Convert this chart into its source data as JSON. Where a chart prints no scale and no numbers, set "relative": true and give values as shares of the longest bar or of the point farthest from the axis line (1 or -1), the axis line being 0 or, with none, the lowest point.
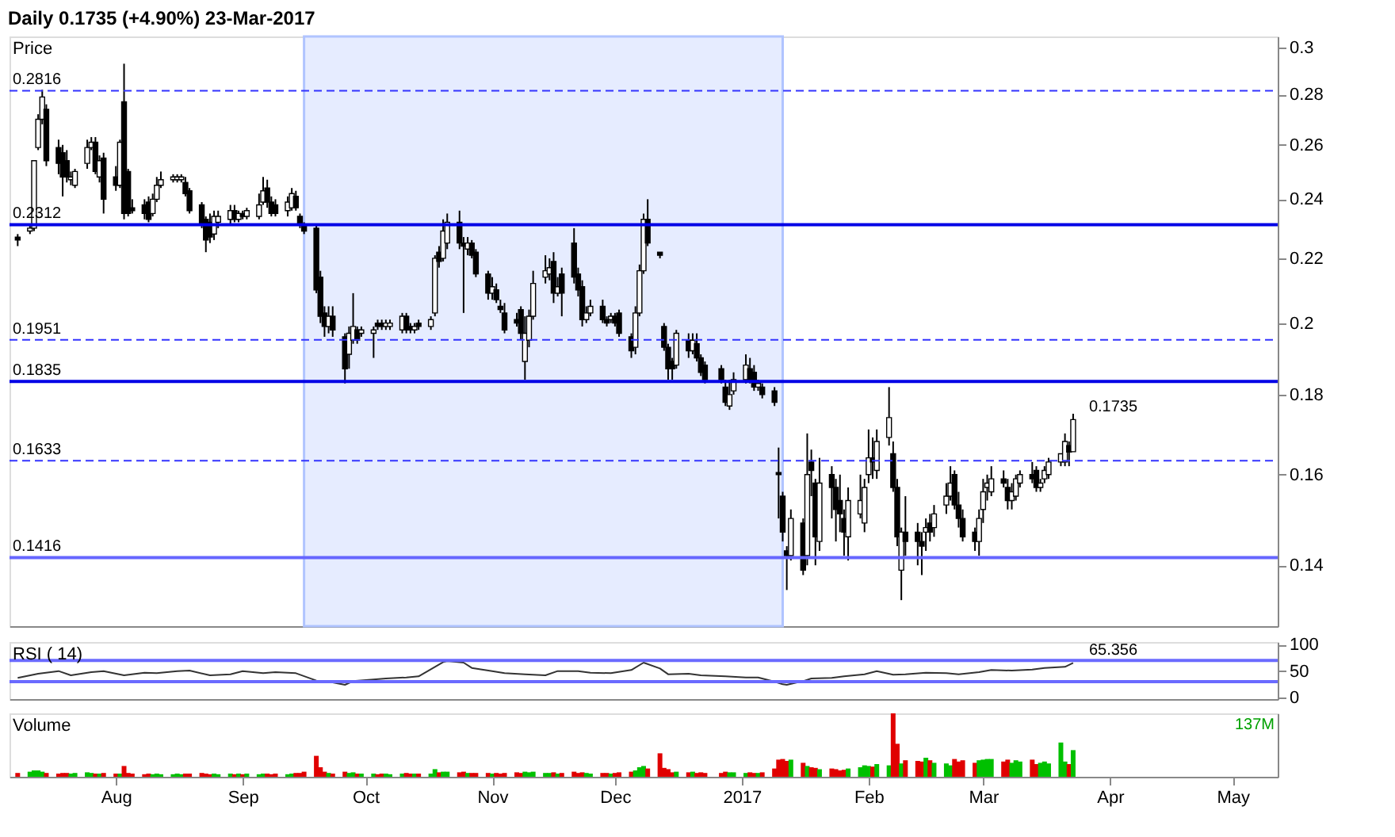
{
  "chart_data": [
    {
      "type": "candlestick",
      "title": "Daily   0.1735 (+4.90%)   23-Mar-2017",
      "ylabel": "Price",
      "x": [
        "2016-07-08",
        "2016-07-11",
        "2016-07-12",
        "2016-07-13",
        "2016-07-14",
        "2016-07-15",
        "2016-07-18",
        "2016-07-19",
        "2016-07-20",
        "2016-07-21",
        "2016-07-22",
        "2016-07-25",
        "2016-07-26",
        "2016-07-27",
        "2016-07-28",
        "2016-07-29",
        "2016-08-01",
        "2016-08-02",
        "2016-08-03",
        "2016-08-04",
        "2016-08-05",
        "2016-08-08",
        "2016-08-09",
        "2016-08-10",
        "2016-08-11",
        "2016-08-12",
        "2016-08-15",
        "2016-08-16",
        "2016-08-17",
        "2016-08-18",
        "2016-08-19",
        "2016-08-22",
        "2016-08-23",
        "2016-08-24",
        "2016-08-25",
        "2016-08-26",
        "2016-08-29",
        "2016-08-30",
        "2016-08-31",
        "2016-09-01",
        "2016-09-02",
        "2016-09-05",
        "2016-09-06",
        "2016-09-07",
        "2016-09-08",
        "2016-09-09",
        "2016-09-12",
        "2016-09-13",
        "2016-09-14",
        "2016-09-15",
        "2016-09-16",
        "2016-09-19",
        "2016-09-20",
        "2016-09-21",
        "2016-09-22",
        "2016-09-23",
        "2016-09-26",
        "2016-09-27",
        "2016-09-28",
        "2016-09-29",
        "2016-09-30",
        "2016-10-03",
        "2016-10-04",
        "2016-10-05",
        "2016-10-06",
        "2016-10-07",
        "2016-10-10",
        "2016-10-11",
        "2016-10-12",
        "2016-10-13",
        "2016-10-14",
        "2016-10-17",
        "2016-10-18",
        "2016-10-19",
        "2016-10-20",
        "2016-10-21",
        "2016-10-24",
        "2016-10-25",
        "2016-10-26",
        "2016-10-27",
        "2016-10-28",
        "2016-10-31",
        "2016-11-01",
        "2016-11-02",
        "2016-11-03",
        "2016-11-04",
        "2016-11-07",
        "2016-11-08",
        "2016-11-09",
        "2016-11-10",
        "2016-11-11",
        "2016-11-14",
        "2016-11-15",
        "2016-11-16",
        "2016-11-17",
        "2016-11-18",
        "2016-11-21",
        "2016-11-22",
        "2016-11-23",
        "2016-11-24",
        "2016-11-25",
        "2016-11-28",
        "2016-11-29",
        "2016-11-30",
        "2016-12-01",
        "2016-12-02",
        "2016-12-05",
        "2016-12-06",
        "2016-12-07",
        "2016-12-08",
        "2016-12-09",
        "2016-12-12",
        "2016-12-13",
        "2016-12-14",
        "2016-12-15",
        "2016-12-16",
        "2016-12-19",
        "2016-12-20",
        "2016-12-21",
        "2016-12-22",
        "2016-12-23",
        "2016-12-27",
        "2016-12-28",
        "2016-12-29",
        "2016-12-30",
        "2017-01-02",
        "2017-01-03",
        "2017-01-04",
        "2017-01-05",
        "2017-01-06",
        "2017-01-09",
        "2017-01-10",
        "2017-01-11",
        "2017-01-12",
        "2017-01-13",
        "2017-01-16",
        "2017-01-17",
        "2017-01-18",
        "2017-01-19",
        "2017-01-20",
        "2017-01-23",
        "2017-01-24",
        "2017-01-25",
        "2017-01-26",
        "2017-01-27",
        "2017-01-30",
        "2017-01-31",
        "2017-02-01",
        "2017-02-02",
        "2017-02-03",
        "2017-02-06",
        "2017-02-07",
        "2017-02-08",
        "2017-02-09",
        "2017-02-10",
        "2017-02-13",
        "2017-02-14",
        "2017-02-15",
        "2017-02-16",
        "2017-02-17",
        "2017-02-20",
        "2017-02-21",
        "2017-02-22",
        "2017-02-23",
        "2017-02-24",
        "2017-02-27",
        "2017-02-28",
        "2017-03-01",
        "2017-03-02",
        "2017-03-03",
        "2017-03-06",
        "2017-03-07",
        "2017-03-08",
        "2017-03-09",
        "2017-03-10",
        "2017-03-13",
        "2017-03-14",
        "2017-03-15",
        "2017-03-16",
        "2017-03-17",
        "2017-03-20",
        "2017-03-21",
        "2017-03-22",
        "2017-03-23"
      ],
      "ohlc": [
        [
          0.227,
          0.228,
          0.224,
          0.226
        ],
        [
          0.229,
          0.231,
          0.228,
          0.23
        ],
        [
          0.23,
          0.254,
          0.229,
          0.254
        ],
        [
          0.259,
          0.272,
          0.258,
          0.27
        ],
        [
          0.27,
          0.282,
          0.268,
          0.279
        ],
        [
          0.274,
          0.276,
          0.252,
          0.254
        ],
        [
          0.259,
          0.262,
          0.249,
          0.253
        ],
        [
          0.257,
          0.26,
          0.241,
          0.248
        ],
        [
          0.254,
          0.258,
          0.246,
          0.248
        ],
        [
          0.247,
          0.25,
          0.245,
          0.248
        ],
        [
          0.245,
          0.251,
          0.244,
          0.25
        ],
        [
          0.253,
          0.262,
          0.251,
          0.259
        ],
        [
          0.259,
          0.263,
          0.258,
          0.261
        ],
        [
          0.261,
          0.263,
          0.249,
          0.25
        ],
        [
          0.248,
          0.256,
          0.246,
          0.254
        ],
        [
          0.255,
          0.257,
          0.235,
          0.24
        ],
        [
          0.248,
          0.252,
          0.243,
          0.245
        ],
        [
          0.245,
          0.262,
          0.244,
          0.261
        ],
        [
          0.277,
          0.293,
          0.233,
          0.235
        ],
        [
          0.25,
          0.251,
          0.234,
          0.235
        ],
        [
          0.237,
          0.24,
          0.235,
          0.236
        ],
        [
          0.238,
          0.24,
          0.233,
          0.235
        ],
        [
          0.239,
          0.241,
          0.232,
          0.233
        ],
        [
          0.235,
          0.242,
          0.234,
          0.24
        ],
        [
          0.24,
          0.248,
          0.239,
          0.245
        ],
        [
          0.245,
          0.25,
          0.244,
          0.247
        ],
        [
          0.247,
          0.249,
          0.246,
          0.248
        ],
        [
          0.247,
          0.249,
          0.246,
          0.248
        ],
        [
          0.247,
          0.249,
          0.246,
          0.248
        ],
        [
          0.246,
          0.248,
          0.241,
          0.242
        ],
        [
          0.243,
          0.244,
          0.235,
          0.236
        ],
        [
          0.238,
          0.239,
          0.23,
          0.231
        ],
        [
          0.233,
          0.234,
          0.222,
          0.226
        ],
        [
          0.232,
          0.235,
          0.225,
          0.227
        ],
        [
          0.228,
          0.236,
          0.226,
          0.234
        ],
        [
          0.232,
          0.236,
          0.23,
          0.234
        ],
        [
          0.233,
          0.238,
          0.231,
          0.236
        ],
        [
          0.236,
          0.238,
          0.232,
          0.233
        ],
        [
          0.233,
          0.236,
          0.232,
          0.235
        ],
        [
          0.235,
          0.236,
          0.233,
          0.234
        ],
        [
          0.234,
          0.237,
          0.233,
          0.236
        ],
        [
          0.234,
          0.242,
          0.233,
          0.238
        ],
        [
          0.239,
          0.248,
          0.238,
          0.243
        ],
        [
          0.244,
          0.247,
          0.237,
          0.239
        ],
        [
          0.239,
          0.241,
          0.234,
          0.235
        ],
        [
          0.238,
          0.24,
          0.234,
          0.235
        ],
        [
          0.236,
          0.241,
          0.234,
          0.239
        ],
        [
          0.237,
          0.244,
          0.236,
          0.242
        ],
        [
          0.241,
          0.243,
          0.236,
          0.237
        ],
        [
          0.234,
          0.235,
          0.23,
          0.231
        ],
        [
          0.231,
          0.232,
          0.228,
          0.229
        ],
        [
          0.23,
          0.231,
          0.209,
          0.21
        ],
        [
          0.214,
          0.216,
          0.2,
          0.202
        ],
        [
          0.203,
          0.205,
          0.196,
          0.199
        ],
        [
          0.199,
          0.205,
          0.197,
          0.202
        ],
        [
          0.202,
          0.205,
          0.196,
          0.198
        ],
        [
          0.196,
          0.197,
          0.183,
          0.187
        ],
        [
          0.191,
          0.199,
          0.187,
          0.197
        ],
        [
          0.195,
          0.209,
          0.194,
          0.199
        ],
        [
          0.198,
          0.199,
          0.194,
          0.195
        ],
        [
          0.197,
          0.199,
          0.196,
          0.198
        ],
        [
          0.197,
          0.199,
          0.19,
          0.198
        ],
        [
          0.2,
          0.201,
          0.198,
          0.199
        ],
        [
          0.2,
          0.201,
          0.198,
          0.199
        ],
        [
          0.199,
          0.201,
          0.198,
          0.2
        ],
        [
          0.199,
          0.201,
          0.198,
          0.2
        ],
        [
          0.198,
          0.203,
          0.197,
          0.202
        ],
        [
          0.202,
          0.203,
          0.197,
          0.198
        ],
        [
          0.199,
          0.2,
          0.197,
          0.198
        ],
        [
          0.198,
          0.2,
          0.197,
          0.199
        ],
        [
          0.2,
          0.201,
          0.198,
          0.199
        ],
        [
          0.199,
          0.202,
          0.198,
          0.201
        ],
        [
          0.203,
          0.221,
          0.202,
          0.22
        ],
        [
          0.222,
          0.224,
          0.217,
          0.219
        ],
        [
          0.22,
          0.233,
          0.219,
          0.229
        ],
        [
          0.225,
          0.235,
          0.223,
          0.232
        ],
        [
          0.232,
          0.236,
          0.223,
          0.225
        ],
        [
          0.225,
          0.227,
          0.203,
          0.224
        ],
        [
          0.223,
          0.227,
          0.221,
          0.225
        ],
        [
          0.225,
          0.226,
          0.22,
          0.221
        ],
        [
          0.222,
          0.223,
          0.214,
          0.215
        ],
        [
          0.215,
          0.216,
          0.207,
          0.209
        ],
        [
          0.209,
          0.214,
          0.207,
          0.211
        ],
        [
          0.21,
          0.212,
          0.206,
          0.207
        ],
        [
          0.205,
          0.207,
          0.203,
          0.204
        ],
        [
          0.203,
          0.206,
          0.197,
          0.198
        ],
        [
          0.201,
          0.203,
          0.199,
          0.2
        ],
        [
          0.204,
          0.205,
          0.195,
          0.197
        ],
        [
          0.189,
          0.202,
          0.184,
          0.197
        ],
        [
          0.195,
          0.204,
          0.193,
          0.202
        ],
        [
          0.202,
          0.216,
          0.201,
          0.212
        ],
        [
          0.214,
          0.221,
          0.212,
          0.216
        ],
        [
          0.215,
          0.22,
          0.213,
          0.217
        ],
        [
          0.219,
          0.222,
          0.206,
          0.209
        ],
        [
          0.209,
          0.214,
          0.208,
          0.211
        ],
        [
          0.215,
          0.217,
          0.202,
          0.209
        ],
        [
          0.225,
          0.23,
          0.212,
          0.214
        ],
        [
          0.215,
          0.217,
          0.208,
          0.21
        ],
        [
          0.211,
          0.213,
          0.199,
          0.201
        ],
        [
          0.201,
          0.205,
          0.2,
          0.203
        ],
        [
          0.203,
          0.207,
          0.202,
          0.205
        ],
        [
          0.205,
          0.207,
          0.2,
          0.201
        ],
        [
          0.201,
          0.202,
          0.199,
          0.2
        ],
        [
          0.201,
          0.203,
          0.2,
          0.202
        ],
        [
          0.202,
          0.203,
          0.199,
          0.2
        ],
        [
          0.203,
          0.204,
          0.196,
          0.197
        ],
        [
          0.196,
          0.197,
          0.19,
          0.192
        ],
        [
          0.193,
          0.205,
          0.191,
          0.203
        ],
        [
          0.203,
          0.218,
          0.202,
          0.216
        ],
        [
          0.216,
          0.235,
          0.215,
          0.233
        ],
        [
          0.233,
          0.24,
          0.224,
          0.225
        ],
        [
          0.222,
          0.222,
          0.22,
          0.221
        ],
        [
          0.199,
          0.2,
          0.192,
          0.193
        ],
        [
          0.193,
          0.194,
          0.184,
          0.187
        ],
        [
          0.189,
          0.19,
          0.184,
          0.187
        ],
        [
          0.188,
          0.198,
          0.187,
          0.197
        ],
        [
          0.195,
          0.197,
          0.19,
          0.192
        ],
        [
          0.192,
          0.197,
          0.191,
          0.195
        ],
        [
          0.194,
          0.197,
          0.189,
          0.19
        ],
        [
          0.19,
          0.191,
          0.185,
          0.186
        ],
        [
          0.188,
          0.189,
          0.183,
          0.184
        ],
        [
          0.187,
          0.188,
          0.183,
          0.184
        ],
        [
          0.182,
          0.184,
          0.177,
          0.178
        ],
        [
          0.177,
          0.184,
          0.176,
          0.18
        ],
        [
          0.181,
          0.186,
          0.18,
          0.184
        ],
        [
          0.184,
          0.191,
          0.183,
          0.188
        ],
        [
          0.187,
          0.19,
          0.183,
          0.184
        ],
        [
          0.186,
          0.188,
          0.181,
          0.182
        ],
        [
          0.182,
          0.184,
          0.181,
          0.183
        ],
        [
          0.182,
          0.183,
          0.179,
          0.18
        ],
        [
          0.181,
          0.182,
          0.177,
          0.178
        ],
        [
          0.1605,
          0.1665,
          0.15,
          0.16
        ],
        [
          0.155,
          0.156,
          0.145,
          0.147
        ],
        [
          0.143,
          0.144,
          0.135,
          0.142
        ],
        [
          0.142,
          0.152,
          0.141,
          0.15
        ],
        [
          0.149,
          0.15,
          0.138,
          0.139
        ],
        [
          0.142,
          0.17,
          0.14,
          0.16
        ],
        [
          0.163,
          0.166,
          0.155,
          0.161
        ],
        [
          0.158,
          0.159,
          0.14,
          0.146
        ],
        [
          0.145,
          0.164,
          0.143,
          0.158
        ],
        [
          0.16,
          0.162,
          0.15,
          0.157
        ],
        [
          0.157,
          0.159,
          0.145,
          0.152
        ],
        [
          0.154,
          0.16,
          0.147,
          0.151
        ],
        [
          0.15,
          0.152,
          0.142,
          0.147
        ],
        [
          0.146,
          0.157,
          0.141,
          0.154
        ],
        [
          0.151,
          0.16,
          0.15,
          0.154
        ],
        [
          0.149,
          0.159,
          0.147,
          0.157
        ],
        [
          0.16,
          0.171,
          0.158,
          0.164
        ],
        [
          0.164,
          0.169,
          0.159,
          0.163
        ],
        [
          0.161,
          0.171,
          0.159,
          0.168
        ],
        [
          0.169,
          0.182,
          0.167,
          0.174
        ],
        [
          0.165,
          0.168,
          0.156,
          0.157
        ],
        [
          0.157,
          0.159,
          0.144,
          0.146
        ],
        [
          0.139,
          0.148,
          0.133,
          0.147
        ],
        [
          0.147,
          0.155,
          0.142,
          0.145
        ],
        [
          0.147,
          0.149,
          0.14,
          0.145
        ],
        [
          0.145,
          0.147,
          0.138,
          0.144
        ],
        [
          0.147,
          0.15,
          0.143,
          0.148
        ],
        [
          0.149,
          0.151,
          0.145,
          0.147
        ],
        [
          0.148,
          0.153,
          0.146,
          0.151
        ],
        [
          0.153,
          0.158,
          0.151,
          0.155
        ],
        [
          0.155,
          0.162,
          0.154,
          0.158
        ],
        [
          0.16,
          0.161,
          0.152,
          0.153
        ],
        [
          0.153,
          0.156,
          0.148,
          0.15
        ],
        [
          0.15,
          0.152,
          0.145,
          0.146
        ],
        [
          0.147,
          0.148,
          0.143,
          0.145
        ],
        [
          0.145,
          0.152,
          0.142,
          0.15
        ],
        [
          0.152,
          0.159,
          0.149,
          0.156
        ],
        [
          0.157,
          0.16,
          0.154,
          0.158
        ],
        [
          0.156,
          0.162,
          0.155,
          0.159
        ],
        [
          0.159,
          0.161,
          0.157,
          0.158
        ],
        [
          0.157,
          0.159,
          0.152,
          0.154
        ],
        [
          0.154,
          0.158,
          0.152,
          0.156
        ],
        [
          0.155,
          0.16,
          0.154,
          0.159
        ],
        [
          0.158,
          0.161,
          0.157,
          0.16
        ],
        [
          0.16,
          0.163,
          0.158,
          0.159
        ],
        [
          0.161,
          0.162,
          0.156,
          0.157
        ],
        [
          0.157,
          0.159,
          0.156,
          0.158
        ],
        [
          0.159,
          0.162,
          0.158,
          0.161
        ],
        [
          0.16,
          0.164,
          0.159,
          0.163
        ],
        [
          0.163,
          0.165,
          0.162,
          0.165
        ],
        [
          0.163,
          0.17,
          0.162,
          0.168
        ],
        [
          0.167,
          0.168,
          0.162,
          0.1654
        ],
        [
          0.1655,
          0.175,
          0.1655,
          0.1735
        ]
      ],
      "log": "y",
      "ylim": [
        0.128,
        0.305
      ],
      "yticks": [
        0.14,
        0.16,
        0.18,
        0.2,
        0.22,
        0.24,
        0.26,
        0.28,
        0.3
      ],
      "xlim": [
        "2016-07-06",
        "2017-05-12"
      ],
      "tick_labels": "y",
      "grid": false,
      "ref_lines": [
        {
          "axis": "y",
          "value": 0.2816,
          "label": "0.2816",
          "color": "#3333ff",
          "line_style": "dashed"
        },
        {
          "axis": "y",
          "value": 0.2312,
          "label": "0.2312",
          "color": "#0000e6",
          "line_style": "solid"
        },
        {
          "axis": "y",
          "value": 0.1951,
          "label": "0.1951",
          "color": "#3333ff",
          "line_style": "dashed"
        },
        {
          "axis": "y",
          "value": 0.1835,
          "label": "0.1835",
          "color": "#0000e6",
          "line_style": "solid"
        },
        {
          "axis": "y",
          "value": 0.1633,
          "label": "0.1633",
          "color": "#3333ff",
          "line_style": "dashed"
        },
        {
          "axis": "y",
          "value": 0.1416,
          "label": "0.1416",
          "color": "#6666ff",
          "line_style": "solid"
        }
      ],
      "bands": [
        {
          "axis": "x",
          "from": "2016-09-16",
          "to": "2017-01-11",
          "color": "#e6ecff"
        }
      ],
      "annotations": [
        {
          "text": "0.1735",
          "x": "2017-03-23",
          "y": 0.1735
        }
      ]
    },
    {
      "type": "line",
      "title": "RSI ( 14)",
      "x": [
        "2016-07-08",
        "2016-07-13",
        "2016-07-18",
        "2016-07-21",
        "2016-07-26",
        "2016-07-29",
        "2016-08-03",
        "2016-08-08",
        "2016-08-11",
        "2016-08-16",
        "2016-08-19",
        "2016-08-24",
        "2016-08-29",
        "2016-09-01",
        "2016-09-06",
        "2016-09-09",
        "2016-09-14",
        "2016-09-19",
        "2016-09-22",
        "2016-09-26",
        "2016-09-28",
        "2016-10-03",
        "2016-10-06",
        "2016-10-11",
        "2016-10-14",
        "2016-10-18",
        "2016-10-20",
        "2016-10-21",
        "2016-10-25",
        "2016-10-27",
        "2016-11-01",
        "2016-11-04",
        "2016-11-09",
        "2016-11-14",
        "2016-11-17",
        "2016-11-22",
        "2016-11-25",
        "2016-11-30",
        "2016-12-05",
        "2016-12-08",
        "2016-12-12",
        "2016-12-14",
        "2016-12-19",
        "2016-12-22",
        "2016-12-28",
        "2017-01-02",
        "2017-01-05",
        "2017-01-09",
        "2017-01-11",
        "2017-01-12",
        "2017-01-16",
        "2017-01-18",
        "2017-01-23",
        "2017-01-26",
        "2017-01-31",
        "2017-02-03",
        "2017-02-07",
        "2017-02-10",
        "2017-02-15",
        "2017-02-20",
        "2017-02-23",
        "2017-02-28",
        "2017-03-03",
        "2017-03-08",
        "2017-03-13",
        "2017-03-16",
        "2017-03-21",
        "2017-03-23"
      ],
      "series": [
        {
          "color": "#333333",
          "values": [
            37,
            45,
            50,
            42,
            48,
            50,
            42,
            47,
            46,
            50,
            51,
            42,
            44,
            50,
            46,
            48,
            46,
            32,
            30,
            24,
            31,
            34,
            36,
            38,
            40,
            58,
            67,
            69,
            66,
            56,
            50,
            46,
            44,
            42,
            50,
            50,
            47,
            46,
            52,
            66,
            55,
            44,
            45,
            42,
            40,
            38,
            38,
            30,
            25,
            24,
            31,
            36,
            37,
            40,
            44,
            50,
            43,
            44,
            47,
            46,
            44,
            48,
            52,
            51,
            53,
            56,
            58,
            65.356
          ]
        }
      ],
      "ylim": [
        -3,
        105
      ],
      "yticks": [
        0,
        50,
        100
      ],
      "xlim": [
        "2016-07-06",
        "2017-05-12"
      ],
      "tick_labels": "y",
      "grid": false,
      "ref_lines": [
        {
          "axis": "y",
          "value": 70,
          "color": "#6a6aff",
          "line_style": "solid"
        },
        {
          "axis": "y",
          "value": 30,
          "color": "#6a6aff",
          "line_style": "solid"
        }
      ],
      "annotations": [
        {
          "text": "65.356",
          "x": "2017-03-23",
          "y": 65.356
        }
      ]
    },
    {
      "type": "bar",
      "title": "Volume",
      "relative": true,
      "tick_labels": "x",
      "grid": false,
      "x": [
        "2016-07-08",
        "2016-07-11",
        "2016-07-12",
        "2016-07-13",
        "2016-07-14",
        "2016-07-15",
        "2016-07-18",
        "2016-07-19",
        "2016-07-20",
        "2016-07-21",
        "2016-07-22",
        "2016-07-25",
        "2016-07-26",
        "2016-07-27",
        "2016-07-28",
        "2016-07-29",
        "2016-08-01",
        "2016-08-02",
        "2016-08-03",
        "2016-08-04",
        "2016-08-05",
        "2016-08-08",
        "2016-08-09",
        "2016-08-10",
        "2016-08-11",
        "2016-08-12",
        "2016-08-15",
        "2016-08-16",
        "2016-08-17",
        "2016-08-18",
        "2016-08-19",
        "2016-08-22",
        "2016-08-23",
        "2016-08-24",
        "2016-08-25",
        "2016-08-26",
        "2016-08-29",
        "2016-08-30",
        "2016-08-31",
        "2016-09-01",
        "2016-09-02",
        "2016-09-05",
        "2016-09-06",
        "2016-09-07",
        "2016-09-08",
        "2016-09-09",
        "2016-09-12",
        "2016-09-13",
        "2016-09-14",
        "2016-09-15",
        "2016-09-16",
        "2016-09-19",
        "2016-09-20",
        "2016-09-21",
        "2016-09-22",
        "2016-09-23",
        "2016-09-26",
        "2016-09-27",
        "2016-09-28",
        "2016-09-29",
        "2016-09-30",
        "2016-10-03",
        "2016-10-04",
        "2016-10-05",
        "2016-10-06",
        "2016-10-07",
        "2016-10-10",
        "2016-10-11",
        "2016-10-12",
        "2016-10-13",
        "2016-10-14",
        "2016-10-17",
        "2016-10-18",
        "2016-10-19",
        "2016-10-20",
        "2016-10-21",
        "2016-10-24",
        "2016-10-25",
        "2016-10-26",
        "2016-10-27",
        "2016-10-28",
        "2016-10-31",
        "2016-11-01",
        "2016-11-02",
        "2016-11-03",
        "2016-11-04",
        "2016-11-07",
        "2016-11-08",
        "2016-11-09",
        "2016-11-10",
        "2016-11-11",
        "2016-11-14",
        "2016-11-15",
        "2016-11-16",
        "2016-11-17",
        "2016-11-18",
        "2016-11-21",
        "2016-11-22",
        "2016-11-23",
        "2016-11-24",
        "2016-11-25",
        "2016-11-28",
        "2016-11-29",
        "2016-11-30",
        "2016-12-01",
        "2016-12-02",
        "2016-12-05",
        "2016-12-06",
        "2016-12-07",
        "2016-12-08",
        "2016-12-09",
        "2016-12-12",
        "2016-12-13",
        "2016-12-14",
        "2016-12-15",
        "2016-12-16",
        "2016-12-19",
        "2016-12-20",
        "2016-12-21",
        "2016-12-22",
        "2016-12-23",
        "2016-12-27",
        "2016-12-28",
        "2016-12-29",
        "2016-12-30",
        "2017-01-02",
        "2017-01-03",
        "2017-01-04",
        "2017-01-05",
        "2017-01-06",
        "2017-01-09",
        "2017-01-10",
        "2017-01-11",
        "2017-01-12",
        "2017-01-13",
        "2017-01-16",
        "2017-01-17",
        "2017-01-18",
        "2017-01-19",
        "2017-01-20",
        "2017-01-23",
        "2017-01-24",
        "2017-01-25",
        "2017-01-26",
        "2017-01-27",
        "2017-01-30",
        "2017-01-31",
        "2017-02-01",
        "2017-02-02",
        "2017-02-03",
        "2017-02-06",
        "2017-02-07",
        "2017-02-08",
        "2017-02-09",
        "2017-02-10",
        "2017-02-13",
        "2017-02-14",
        "2017-02-15",
        "2017-02-16",
        "2017-02-17",
        "2017-02-20",
        "2017-02-21",
        "2017-02-22",
        "2017-02-23",
        "2017-02-24",
        "2017-02-27",
        "2017-02-28",
        "2017-03-01",
        "2017-03-02",
        "2017-03-03",
        "2017-03-06",
        "2017-03-07",
        "2017-03-08",
        "2017-03-09",
        "2017-03-10",
        "2017-03-13",
        "2017-03-14",
        "2017-03-15",
        "2017-03-16",
        "2017-03-17",
        "2017-03-20",
        "2017-03-21",
        "2017-03-22",
        "2017-03-23"
      ],
      "values": [
        0.06,
        0.08,
        0.1,
        0.1,
        0.08,
        0.06,
        0.05,
        0.06,
        0.06,
        0.05,
        0.06,
        0.07,
        0.06,
        0.05,
        0.05,
        0.06,
        0.05,
        0.05,
        0.17,
        0.06,
        0.05,
        0.04,
        0.05,
        0.04,
        0.05,
        0.04,
        0.04,
        0.05,
        0.04,
        0.05,
        0.05,
        0.06,
        0.05,
        0.04,
        0.05,
        0.04,
        0.05,
        0.04,
        0.05,
        0.04,
        0.05,
        0.04,
        0.05,
        0.05,
        0.04,
        0.05,
        0.04,
        0.05,
        0.06,
        0.06,
        0.08,
        0.33,
        0.15,
        0.08,
        0.06,
        0.05,
        0.08,
        0.06,
        0.07,
        0.05,
        0.05,
        0.05,
        0.04,
        0.05,
        0.05,
        0.04,
        0.05,
        0.06,
        0.05,
        0.05,
        0.05,
        0.05,
        0.12,
        0.07,
        0.08,
        0.08,
        0.07,
        0.08,
        0.06,
        0.06,
        0.06,
        0.06,
        0.05,
        0.06,
        0.05,
        0.06,
        0.07,
        0.06,
        0.08,
        0.07,
        0.08,
        0.06,
        0.06,
        0.07,
        0.05,
        0.06,
        0.08,
        0.06,
        0.07,
        0.06,
        0.05,
        0.06,
        0.06,
        0.05,
        0.06,
        0.07,
        0.08,
        0.1,
        0.15,
        0.17,
        0.13,
        0.37,
        0.14,
        0.12,
        0.07,
        0.08,
        0.07,
        0.08,
        0.06,
        0.07,
        0.06,
        0.06,
        0.08,
        0.07,
        0.07,
        0.06,
        0.07,
        0.06,
        0.06,
        0.07,
        0.13,
        0.27,
        0.28,
        0.25,
        0.27,
        0.22,
        0.17,
        0.15,
        0.14,
        0.12,
        0.13,
        0.12,
        0.1,
        0.11,
        0.13,
        0.15,
        0.18,
        0.17,
        0.16,
        0.2,
        0.18,
        1.0,
        0.52,
        0.21,
        0.26,
        0.25,
        0.24,
        0.3,
        0.26,
        0.22,
        0.21,
        0.18,
        0.28,
        0.24,
        0.26,
        0.22,
        0.26,
        0.27,
        0.28,
        0.28,
        0.24,
        0.27,
        0.22,
        0.26,
        0.24,
        0.27,
        0.2,
        0.22,
        0.24,
        0.21,
        0.54,
        0.24,
        0.2,
        0.42
      ],
      "colors": [
        "#e00000",
        "#00c000",
        "#00c000",
        "#00c000",
        "#00c000",
        "#e00000",
        "#e00000",
        "#e00000",
        "#e00000",
        "#00c000",
        "#00c000",
        "#00c000",
        "#00c000",
        "#e00000",
        "#00c000",
        "#e00000",
        "#e00000",
        "#00c000",
        "#e00000",
        "#e00000",
        "#e00000",
        "#e00000",
        "#e00000",
        "#00c000",
        "#00c000",
        "#00c000",
        "#00c000",
        "#00c000",
        "#00c000",
        "#e00000",
        "#e00000",
        "#e00000",
        "#e00000",
        "#e00000",
        "#00c000",
        "#00c000",
        "#00c000",
        "#e00000",
        "#00c000",
        "#e00000",
        "#00c000",
        "#00c000",
        "#00c000",
        "#e00000",
        "#e00000",
        "#e00000",
        "#00c000",
        "#00c000",
        "#e00000",
        "#e00000",
        "#e00000",
        "#e00000",
        "#e00000",
        "#e00000",
        "#00c000",
        "#e00000",
        "#e00000",
        "#00c000",
        "#00c000",
        "#e00000",
        "#00c000",
        "#00c000",
        "#e00000",
        "#e00000",
        "#00c000",
        "#00c000",
        "#00c000",
        "#e00000",
        "#e00000",
        "#00c000",
        "#e00000",
        "#00c000",
        "#00c000",
        "#e00000",
        "#00c000",
        "#00c000",
        "#e00000",
        "#e00000",
        "#00c000",
        "#e00000",
        "#e00000",
        "#e00000",
        "#00c000",
        "#e00000",
        "#e00000",
        "#e00000",
        "#e00000",
        "#e00000",
        "#00c000",
        "#00c000",
        "#00c000",
        "#00c000",
        "#00c000",
        "#e00000",
        "#00c000",
        "#e00000",
        "#e00000",
        "#e00000",
        "#e00000",
        "#00c000",
        "#00c000",
        "#e00000",
        "#e00000",
        "#00c000",
        "#e00000",
        "#e00000",
        "#e00000",
        "#00c000",
        "#00c000",
        "#00c000",
        "#e00000",
        "#e00000",
        "#e00000",
        "#e00000",
        "#e00000",
        "#00c000",
        "#e00000",
        "#00c000",
        "#e00000",
        "#e00000",
        "#e00000",
        "#e00000",
        "#e00000",
        "#00c000",
        "#00c000",
        "#00c000",
        "#e00000",
        "#e00000",
        "#00c000",
        "#e00000",
        "#e00000",
        "#e00000",
        "#e00000",
        "#e00000",
        "#00c000",
        "#e00000",
        "#00c000",
        "#e00000",
        "#e00000",
        "#00c000",
        "#e00000",
        "#e00000",
        "#e00000",
        "#e00000",
        "#00c000",
        "#00c000",
        "#00c000",
        "#00c000",
        "#e00000",
        "#00c000",
        "#00c000",
        "#e00000",
        "#e00000",
        "#00c000",
        "#e00000",
        "#e00000",
        "#e00000",
        "#00c000",
        "#e00000",
        "#00c000",
        "#00c000",
        "#00c000",
        "#e00000",
        "#e00000",
        "#e00000",
        "#e00000",
        "#00c000",
        "#00c000",
        "#00c000",
        "#00c000",
        "#e00000",
        "#e00000",
        "#00c000",
        "#00c000",
        "#00c000",
        "#e00000",
        "#e00000",
        "#00c000",
        "#00c000",
        "#00c000",
        "#00c000",
        "#00c000",
        "#e00000",
        "#00c000"
      ],
      "xlim": [
        "2016-07-06",
        "2017-05-12"
      ],
      "xticks": [
        {
          "value": "2016-08-01",
          "label": "Aug"
        },
        {
          "value": "2016-09-01",
          "label": "Sep"
        },
        {
          "value": "2016-10-01",
          "label": "Oct"
        },
        {
          "value": "2016-11-01",
          "label": "Nov"
        },
        {
          "value": "2016-12-01",
          "label": "Dec"
        },
        {
          "value": "2017-01-01",
          "label": "2017"
        },
        {
          "value": "2017-02-01",
          "label": "Feb"
        },
        {
          "value": "2017-03-01",
          "label": "Mar"
        },
        {
          "value": "2017-04-01",
          "label": "Apr"
        },
        {
          "value": "2017-05-01",
          "label": "May"
        }
      ],
      "annotations": [
        "137M"
      ]
    }
  ]
}
